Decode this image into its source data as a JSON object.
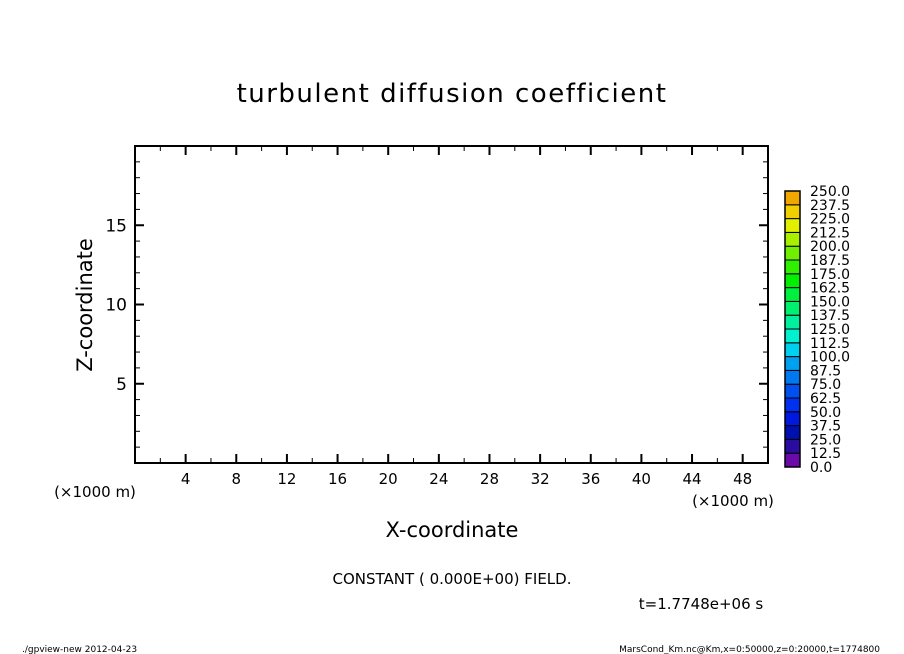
{
  "chart_data": {
    "type": "heatmap",
    "title": "turbulent diffusion coefficient",
    "xlabel": "X-coordinate",
    "ylabel": "Z-coordinate",
    "x_unit": "(×1000 m)",
    "y_unit": "(×1000 m)",
    "xlim": [
      0,
      50
    ],
    "ylim": [
      0,
      20
    ],
    "x_ticks": [
      4,
      8,
      12,
      16,
      20,
      24,
      28,
      32,
      36,
      40,
      44,
      48
    ],
    "y_ticks": [
      5,
      10,
      15
    ],
    "grid": false,
    "field_note": "CONSTANT ( 0.000E+00) FIELD.",
    "time_label": "t=1.7748e+06 s",
    "colorbar": {
      "levels": [
        "0.0",
        "12.5",
        "25.0",
        "37.5",
        "50.0",
        "62.5",
        "75.0",
        "87.5",
        "100.0",
        "112.5",
        "125.0",
        "137.5",
        "150.0",
        "162.5",
        "175.0",
        "187.5",
        "200.0",
        "212.5",
        "225.0",
        "237.5",
        "250.0"
      ],
      "colors": [
        "#6a0aa8",
        "#2a0ca0",
        "#0010b0",
        "#0018e0",
        "#0030f0",
        "#0050f0",
        "#0078f0",
        "#00a0f0",
        "#00d0f0",
        "#00f0d0",
        "#00f0a0",
        "#00f070",
        "#00f040",
        "#00f000",
        "#30f000",
        "#70f000",
        "#a8f000",
        "#e0f000",
        "#f0d000",
        "#f0a800"
      ],
      "top_colors_note": ""
    }
  },
  "footer": {
    "left": "./gpview-new  2012-04-23",
    "right": "MarsCond_Km.nc@Km,x=0:50000,z=0:20000,t=1774800"
  }
}
